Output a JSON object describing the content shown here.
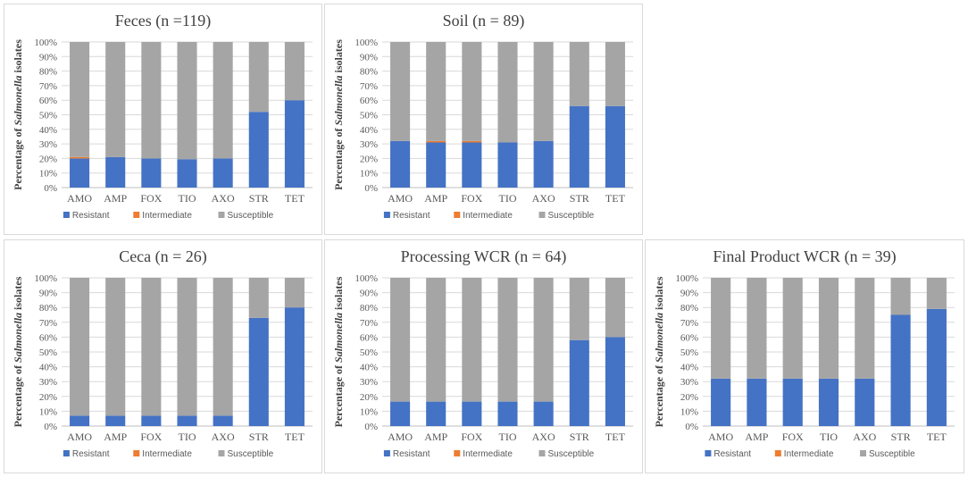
{
  "chart_data": [
    {
      "type": "bar",
      "stacked": true,
      "title": "Feces (n =119)",
      "ylabel_prefix": "Percentage of ",
      "ylabel_italic": "Salmonella",
      "ylabel_suffix": " isolates",
      "categories": [
        "AMO",
        "AMP",
        "FOX",
        "TIO",
        "AXO",
        "STR",
        "TET"
      ],
      "yticks": [
        "0%",
        "10%",
        "20%",
        "30%",
        "40%",
        "50%",
        "60%",
        "70%",
        "80%",
        "90%",
        "100%"
      ],
      "ylim": [
        0,
        100
      ],
      "series": [
        {
          "name": "Resistant",
          "values": [
            20,
            21,
            20,
            19.5,
            20,
            52,
            60
          ]
        },
        {
          "name": "Intermediate",
          "values": [
            1,
            0,
            0,
            0,
            0,
            0,
            0
          ]
        },
        {
          "name": "Susceptible",
          "values": [
            79,
            79,
            80,
            80.5,
            80,
            48,
            40
          ]
        }
      ],
      "legend": "bottom"
    },
    {
      "type": "bar",
      "stacked": true,
      "title": "Soil (n = 89)",
      "ylabel_prefix": "Percentage of ",
      "ylabel_italic": "Salmonella",
      "ylabel_suffix": " isolates",
      "categories": [
        "AMO",
        "AMP",
        "FOX",
        "TIO",
        "AXO",
        "STR",
        "TET"
      ],
      "yticks": [
        "0%",
        "10%",
        "20%",
        "30%",
        "40%",
        "50%",
        "60%",
        "70%",
        "80%",
        "90%",
        "100%"
      ],
      "ylim": [
        0,
        100
      ],
      "series": [
        {
          "name": "Resistant",
          "values": [
            32,
            31,
            31,
            31,
            32,
            56,
            56
          ]
        },
        {
          "name": "Intermediate",
          "values": [
            0,
            1,
            1,
            0,
            0,
            0,
            0
          ]
        },
        {
          "name": "Susceptible",
          "values": [
            68,
            68,
            68,
            69,
            68,
            44,
            44
          ]
        }
      ],
      "legend": "bottom"
    },
    {
      "type": "bar",
      "stacked": true,
      "title": "Ceca (n = 26)",
      "ylabel_prefix": "Percentage of ",
      "ylabel_italic": "Salmonella",
      "ylabel_suffix": " isolates",
      "categories": [
        "AMO",
        "AMP",
        "FOX",
        "TIO",
        "AXO",
        "STR",
        "TET"
      ],
      "yticks": [
        "0%",
        "10%",
        "20%",
        "30%",
        "40%",
        "50%",
        "60%",
        "70%",
        "80%",
        "90%",
        "100%"
      ],
      "ylim": [
        0,
        100
      ],
      "series": [
        {
          "name": "Resistant",
          "values": [
            7,
            7,
            7,
            7,
            7,
            73,
            80
          ]
        },
        {
          "name": "Intermediate",
          "values": [
            0,
            0,
            0,
            0,
            0,
            0,
            0
          ]
        },
        {
          "name": "Susceptible",
          "values": [
            93,
            93,
            93,
            93,
            93,
            27,
            20
          ]
        }
      ],
      "legend": "bottom"
    },
    {
      "type": "bar",
      "stacked": true,
      "title": "Processing WCR (n = 64)",
      "ylabel_prefix": "Percentage of ",
      "ylabel_italic": "Salmonella",
      "ylabel_suffix": " isolates",
      "categories": [
        "AMO",
        "AMP",
        "FOX",
        "TIO",
        "AXO",
        "STR",
        "TET"
      ],
      "yticks": [
        "0%",
        "10%",
        "20%",
        "30%",
        "40%",
        "50%",
        "60%",
        "70%",
        "80%",
        "90%",
        "100%"
      ],
      "ylim": [
        0,
        100
      ],
      "series": [
        {
          "name": "Resistant",
          "values": [
            16.5,
            16.5,
            16.5,
            16.5,
            16.5,
            58,
            60
          ]
        },
        {
          "name": "Intermediate",
          "values": [
            0,
            0,
            0,
            0,
            0,
            0,
            0
          ]
        },
        {
          "name": "Susceptible",
          "values": [
            83.5,
            83.5,
            83.5,
            83.5,
            83.5,
            42,
            40
          ]
        }
      ],
      "legend": "bottom"
    },
    {
      "type": "bar",
      "stacked": true,
      "title": "Final Product WCR (n = 39)",
      "ylabel_prefix": "Percentage of ",
      "ylabel_italic": "Salmonella",
      "ylabel_suffix": " isolates",
      "categories": [
        "AMO",
        "AMP",
        "FOX",
        "TIO",
        "AXO",
        "STR",
        "TET"
      ],
      "yticks": [
        "0%",
        "10%",
        "20%",
        "30%",
        "40%",
        "50%",
        "60%",
        "70%",
        "80%",
        "90%",
        "100%"
      ],
      "ylim": [
        0,
        100
      ],
      "series": [
        {
          "name": "Resistant",
          "values": [
            32,
            32,
            32,
            32,
            32,
            75,
            79
          ]
        },
        {
          "name": "Intermediate",
          "values": [
            0,
            0,
            0,
            0,
            0,
            0,
            0
          ]
        },
        {
          "name": "Susceptible",
          "values": [
            68,
            68,
            68,
            68,
            68,
            25,
            21
          ]
        }
      ],
      "legend": "bottom"
    }
  ],
  "colors": {
    "Resistant": "#4472c4",
    "Intermediate": "#ed7d31",
    "Susceptible": "#a5a5a5",
    "grid": "#d9d9d9",
    "axis": "#bfbfbf"
  }
}
